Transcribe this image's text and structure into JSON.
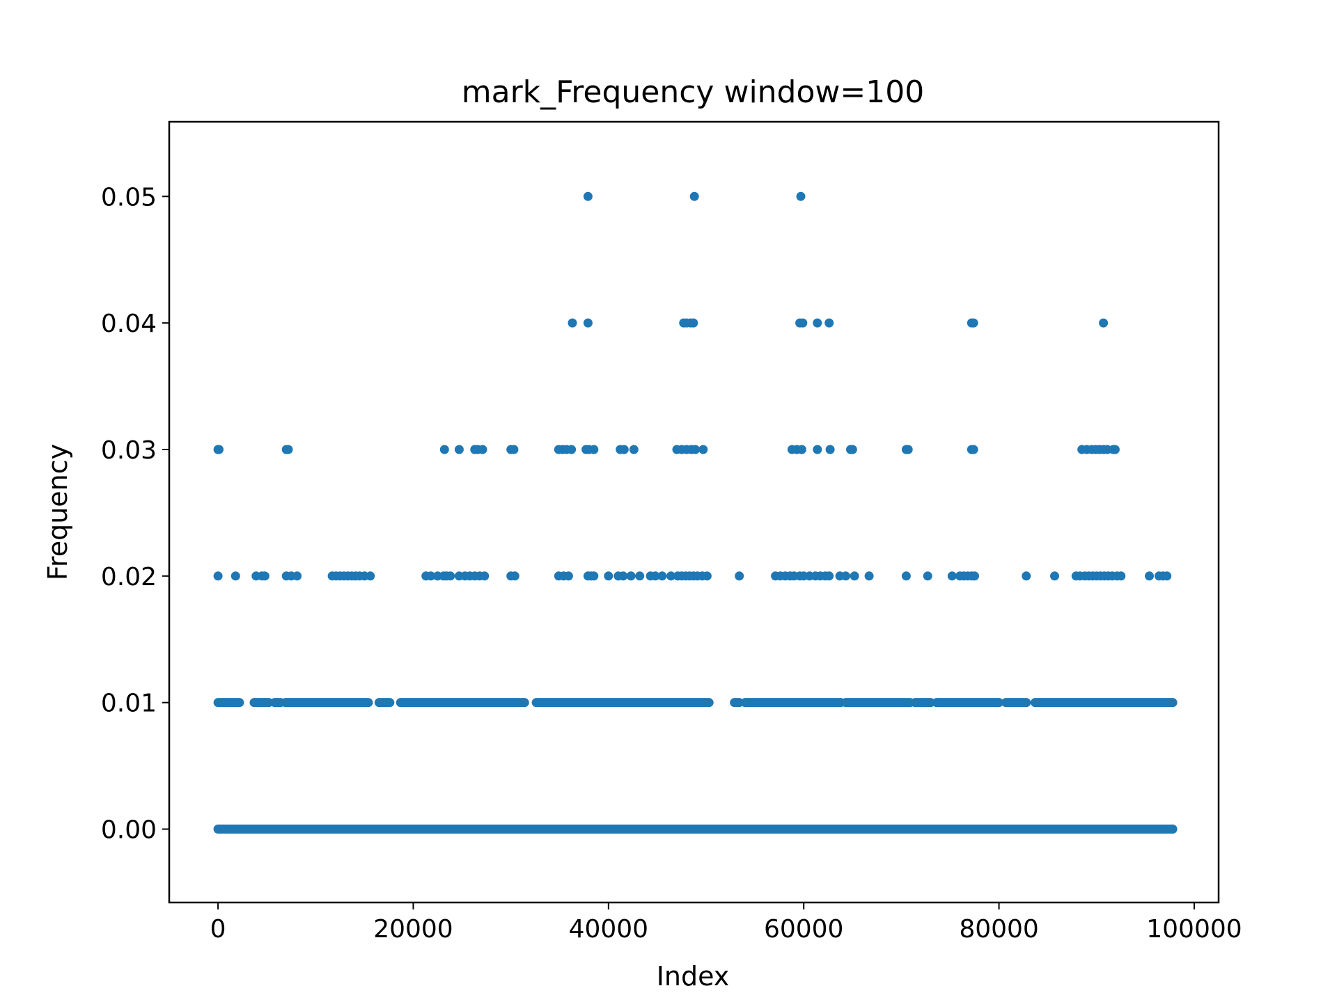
{
  "chart_data": {
    "type": "scatter",
    "title": "mark_Frequency window=100",
    "xlabel": "Index",
    "ylabel": "Frequency",
    "xlim": [
      -5000,
      102500
    ],
    "ylim": [
      -0.0058,
      0.0559
    ],
    "xticks": [
      0,
      20000,
      40000,
      60000,
      80000,
      100000
    ],
    "xtick_labels": [
      "0",
      "20000",
      "40000",
      "60000",
      "80000",
      "100000"
    ],
    "yticks": [
      0.0,
      0.01,
      0.02,
      0.03,
      0.04,
      0.05
    ],
    "ytick_labels": [
      "0.00",
      "0.01",
      "0.02",
      "0.03",
      "0.04",
      "0.05"
    ],
    "grid": false,
    "legend": "none",
    "marker_color": "#1f77b4",
    "series": [
      {
        "baseline": {
          "y": 0.0,
          "x_from": 0,
          "x_to": 97800,
          "note_density": "continuous"
        },
        "points": [
          {
            "y": 0.05,
            "x": [
              37900,
              48800,
              59700
            ]
          },
          {
            "y": 0.04,
            "x": [
              36300,
              37900,
              47700,
              48000,
              48400,
              48700,
              59600,
              59900,
              61400,
              62600,
              77200,
              77400,
              90700
            ]
          },
          {
            "y": 0.03,
            "x": [
              0,
              100,
              7000,
              7200,
              23200,
              24700,
              26300,
              26600,
              27100,
              30000,
              30300,
              34900,
              35300,
              35700,
              36200,
              37700,
              38000,
              38500,
              41200,
              41600,
              42600,
              47000,
              47500,
              48000,
              48500,
              48900,
              49700,
              58800,
              59300,
              59800,
              61400,
              62700,
              64800,
              65000,
              70500,
              70700,
              77200,
              77400,
              88500,
              89000,
              89500,
              89900,
              90300,
              90700,
              91100,
              91700,
              91900
            ]
          },
          {
            "y": 0.02,
            "x": [
              0,
              1800,
              3900,
              4500,
              4800,
              7000,
              7500,
              8100,
              11700,
              12100,
              12500,
              12900,
              13300,
              13700,
              14100,
              14500,
              15000,
              15600,
              21300,
              21800,
              22500,
              23100,
              23400,
              23800,
              24700,
              25300,
              25800,
              26300,
              26800,
              27300,
              30000,
              30400,
              34900,
              35400,
              35900,
              37900,
              38200,
              38500,
              40000,
              41000,
              41500,
              42300,
              43200,
              44300,
              44800,
              45500,
              46400,
              47100,
              47500,
              47900,
              48300,
              48700,
              49100,
              49600,
              50100,
              53400,
              57100,
              57600,
              58100,
              58600,
              59000,
              59600,
              60000,
              60600,
              61200,
              61700,
              62200,
              62600,
              63700,
              64300,
              65200,
              66700,
              70500,
              72700,
              75200,
              76000,
              76400,
              76800,
              77200,
              77500,
              82800,
              85700,
              87900,
              88300,
              88800,
              89200,
              89600,
              90000,
              90400,
              90800,
              91200,
              91600,
              92100,
              92500,
              95400,
              96400,
              96800,
              97200
            ]
          },
          {
            "y": 0.01,
            "x_ranges": [
              [
                0,
                2200
              ],
              [
                3700,
                5200
              ],
              [
                5800,
                6400
              ],
              [
                6900,
                15400
              ],
              [
                16500,
                17600
              ],
              [
                18700,
                31400
              ],
              [
                32600,
                50300
              ],
              [
                52900,
                53400
              ],
              [
                54000,
                63800
              ],
              [
                64300,
                70900
              ],
              [
                71400,
                73000
              ],
              [
                73600,
                80000
              ],
              [
                80700,
                82800
              ],
              [
                83700,
                97800
              ]
            ]
          }
        ]
      }
    ]
  }
}
